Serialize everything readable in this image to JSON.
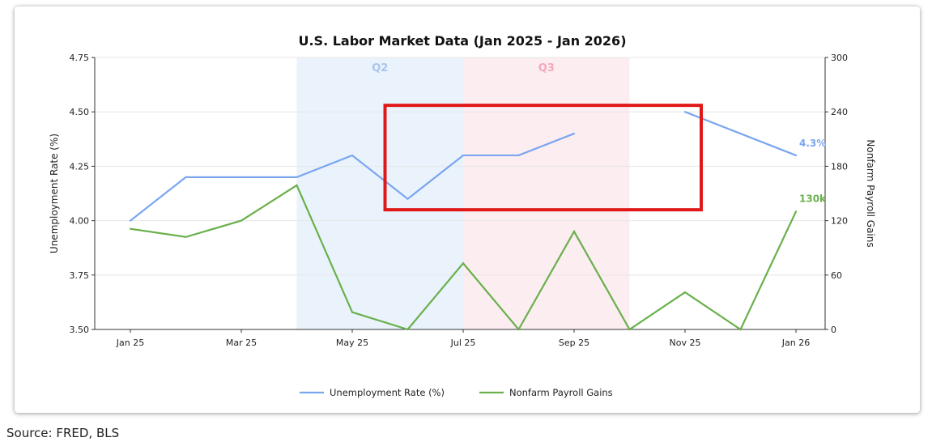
{
  "chart_data": {
    "type": "line",
    "title": "U.S. Labor Market Data (Jan 2025 - Jan 2026)",
    "x": [
      "Jan 25",
      "Feb 25",
      "Mar 25",
      "Apr 25",
      "May 25",
      "Jun 25",
      "Jul 25",
      "Aug 25",
      "Sep 25",
      "Oct 25",
      "Nov 25",
      "Dec 25",
      "Jan 26"
    ],
    "x_tick_labels": [
      "Jan 25",
      "Mar 25",
      "May 25",
      "Jul 25",
      "Sep 25",
      "Nov 25",
      "Jan 26"
    ],
    "ylabel_left": "Unemployment Rate (%)",
    "ylabel_right": "Nonfarm Payroll Gains",
    "ylim_left": [
      3.5,
      4.75
    ],
    "ylim_right": [
      0,
      300
    ],
    "yticks_left": [
      "3.50",
      "3.75",
      "4.00",
      "4.25",
      "4.50",
      "4.75"
    ],
    "yticks_right": [
      "0",
      "60",
      "120",
      "180",
      "240",
      "300"
    ],
    "grid": "horizontal",
    "legend_placement": "bottom-center",
    "series": [
      {
        "name": "Unemployment Rate (%)",
        "axis": "left",
        "color": "#7aa6f0",
        "values": [
          4.0,
          4.2,
          4.2,
          4.2,
          4.3,
          4.1,
          4.3,
          4.3,
          4.4,
          null,
          4.5,
          4.4,
          4.3
        ],
        "end_label": "4.3%"
      },
      {
        "name": "Nonfarm Payroll Gains",
        "axis": "right",
        "color": "#6ab04c",
        "values": [
          111,
          102,
          120,
          159,
          19,
          0,
          73,
          0,
          108,
          0,
          41,
          0,
          130
        ],
        "end_label": "130k"
      }
    ],
    "shaded_regions": [
      {
        "label": "Q2",
        "from": "Apr 25",
        "to": "Jul 25",
        "fill": "#eaf3fc",
        "label_color": "#a9c5ee"
      },
      {
        "label": "Q3",
        "from": "Jul 25",
        "to": "Oct 25",
        "fill": "#fcedf1",
        "label_color": "#f4a9bb"
      }
    ],
    "annotations": [
      {
        "type": "rectangle",
        "color": "#e01818",
        "x_from": "Jun 25",
        "x_to": "Nov 25",
        "y_from": 4.05,
        "y_to": 4.53
      }
    ]
  },
  "source_note": "Source: FRED, BLS"
}
